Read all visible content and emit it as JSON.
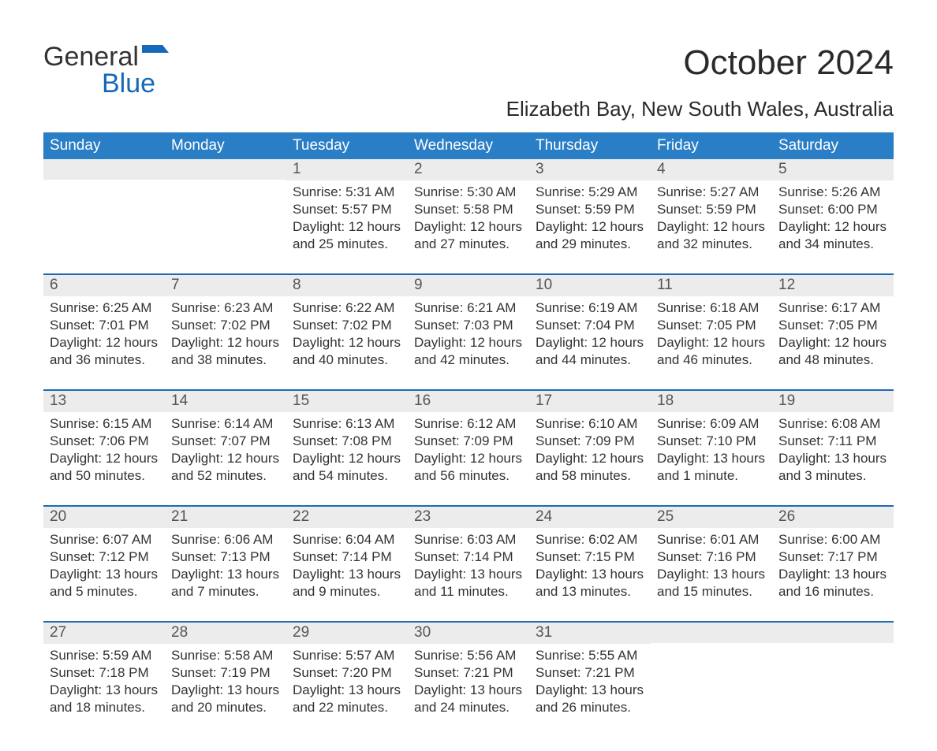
{
  "brand": {
    "part1": "General",
    "part2": "Blue"
  },
  "title": {
    "month_year": "October 2024",
    "location": "Elizabeth Bay, New South Wales, Australia"
  },
  "colors": {
    "header_blue": "#2a7ec6",
    "row_border_blue": "#1f6bb3",
    "daynum_bg": "#ececec",
    "text_dark": "#333333",
    "logo_blue": "#1668b8",
    "background": "#ffffff"
  },
  "weekdays": [
    "Sunday",
    "Monday",
    "Tuesday",
    "Wednesday",
    "Thursday",
    "Friday",
    "Saturday"
  ],
  "weeks": [
    [
      null,
      null,
      {
        "n": "1",
        "sunrise": "Sunrise: 5:31 AM",
        "sunset": "Sunset: 5:57 PM",
        "dl1": "Daylight: 12 hours",
        "dl2": "and 25 minutes."
      },
      {
        "n": "2",
        "sunrise": "Sunrise: 5:30 AM",
        "sunset": "Sunset: 5:58 PM",
        "dl1": "Daylight: 12 hours",
        "dl2": "and 27 minutes."
      },
      {
        "n": "3",
        "sunrise": "Sunrise: 5:29 AM",
        "sunset": "Sunset: 5:59 PM",
        "dl1": "Daylight: 12 hours",
        "dl2": "and 29 minutes."
      },
      {
        "n": "4",
        "sunrise": "Sunrise: 5:27 AM",
        "sunset": "Sunset: 5:59 PM",
        "dl1": "Daylight: 12 hours",
        "dl2": "and 32 minutes."
      },
      {
        "n": "5",
        "sunrise": "Sunrise: 5:26 AM",
        "sunset": "Sunset: 6:00 PM",
        "dl1": "Daylight: 12 hours",
        "dl2": "and 34 minutes."
      }
    ],
    [
      {
        "n": "6",
        "sunrise": "Sunrise: 6:25 AM",
        "sunset": "Sunset: 7:01 PM",
        "dl1": "Daylight: 12 hours",
        "dl2": "and 36 minutes."
      },
      {
        "n": "7",
        "sunrise": "Sunrise: 6:23 AM",
        "sunset": "Sunset: 7:02 PM",
        "dl1": "Daylight: 12 hours",
        "dl2": "and 38 minutes."
      },
      {
        "n": "8",
        "sunrise": "Sunrise: 6:22 AM",
        "sunset": "Sunset: 7:02 PM",
        "dl1": "Daylight: 12 hours",
        "dl2": "and 40 minutes."
      },
      {
        "n": "9",
        "sunrise": "Sunrise: 6:21 AM",
        "sunset": "Sunset: 7:03 PM",
        "dl1": "Daylight: 12 hours",
        "dl2": "and 42 minutes."
      },
      {
        "n": "10",
        "sunrise": "Sunrise: 6:19 AM",
        "sunset": "Sunset: 7:04 PM",
        "dl1": "Daylight: 12 hours",
        "dl2": "and 44 minutes."
      },
      {
        "n": "11",
        "sunrise": "Sunrise: 6:18 AM",
        "sunset": "Sunset: 7:05 PM",
        "dl1": "Daylight: 12 hours",
        "dl2": "and 46 minutes."
      },
      {
        "n": "12",
        "sunrise": "Sunrise: 6:17 AM",
        "sunset": "Sunset: 7:05 PM",
        "dl1": "Daylight: 12 hours",
        "dl2": "and 48 minutes."
      }
    ],
    [
      {
        "n": "13",
        "sunrise": "Sunrise: 6:15 AM",
        "sunset": "Sunset: 7:06 PM",
        "dl1": "Daylight: 12 hours",
        "dl2": "and 50 minutes."
      },
      {
        "n": "14",
        "sunrise": "Sunrise: 6:14 AM",
        "sunset": "Sunset: 7:07 PM",
        "dl1": "Daylight: 12 hours",
        "dl2": "and 52 minutes."
      },
      {
        "n": "15",
        "sunrise": "Sunrise: 6:13 AM",
        "sunset": "Sunset: 7:08 PM",
        "dl1": "Daylight: 12 hours",
        "dl2": "and 54 minutes."
      },
      {
        "n": "16",
        "sunrise": "Sunrise: 6:12 AM",
        "sunset": "Sunset: 7:09 PM",
        "dl1": "Daylight: 12 hours",
        "dl2": "and 56 minutes."
      },
      {
        "n": "17",
        "sunrise": "Sunrise: 6:10 AM",
        "sunset": "Sunset: 7:09 PM",
        "dl1": "Daylight: 12 hours",
        "dl2": "and 58 minutes."
      },
      {
        "n": "18",
        "sunrise": "Sunrise: 6:09 AM",
        "sunset": "Sunset: 7:10 PM",
        "dl1": "Daylight: 13 hours",
        "dl2": "and 1 minute."
      },
      {
        "n": "19",
        "sunrise": "Sunrise: 6:08 AM",
        "sunset": "Sunset: 7:11 PM",
        "dl1": "Daylight: 13 hours",
        "dl2": "and 3 minutes."
      }
    ],
    [
      {
        "n": "20",
        "sunrise": "Sunrise: 6:07 AM",
        "sunset": "Sunset: 7:12 PM",
        "dl1": "Daylight: 13 hours",
        "dl2": "and 5 minutes."
      },
      {
        "n": "21",
        "sunrise": "Sunrise: 6:06 AM",
        "sunset": "Sunset: 7:13 PM",
        "dl1": "Daylight: 13 hours",
        "dl2": "and 7 minutes."
      },
      {
        "n": "22",
        "sunrise": "Sunrise: 6:04 AM",
        "sunset": "Sunset: 7:14 PM",
        "dl1": "Daylight: 13 hours",
        "dl2": "and 9 minutes."
      },
      {
        "n": "23",
        "sunrise": "Sunrise: 6:03 AM",
        "sunset": "Sunset: 7:14 PM",
        "dl1": "Daylight: 13 hours",
        "dl2": "and 11 minutes."
      },
      {
        "n": "24",
        "sunrise": "Sunrise: 6:02 AM",
        "sunset": "Sunset: 7:15 PM",
        "dl1": "Daylight: 13 hours",
        "dl2": "and 13 minutes."
      },
      {
        "n": "25",
        "sunrise": "Sunrise: 6:01 AM",
        "sunset": "Sunset: 7:16 PM",
        "dl1": "Daylight: 13 hours",
        "dl2": "and 15 minutes."
      },
      {
        "n": "26",
        "sunrise": "Sunrise: 6:00 AM",
        "sunset": "Sunset: 7:17 PM",
        "dl1": "Daylight: 13 hours",
        "dl2": "and 16 minutes."
      }
    ],
    [
      {
        "n": "27",
        "sunrise": "Sunrise: 5:59 AM",
        "sunset": "Sunset: 7:18 PM",
        "dl1": "Daylight: 13 hours",
        "dl2": "and 18 minutes."
      },
      {
        "n": "28",
        "sunrise": "Sunrise: 5:58 AM",
        "sunset": "Sunset: 7:19 PM",
        "dl1": "Daylight: 13 hours",
        "dl2": "and 20 minutes."
      },
      {
        "n": "29",
        "sunrise": "Sunrise: 5:57 AM",
        "sunset": "Sunset: 7:20 PM",
        "dl1": "Daylight: 13 hours",
        "dl2": "and 22 minutes."
      },
      {
        "n": "30",
        "sunrise": "Sunrise: 5:56 AM",
        "sunset": "Sunset: 7:21 PM",
        "dl1": "Daylight: 13 hours",
        "dl2": "and 24 minutes."
      },
      {
        "n": "31",
        "sunrise": "Sunrise: 5:55 AM",
        "sunset": "Sunset: 7:21 PM",
        "dl1": "Daylight: 13 hours",
        "dl2": "and 26 minutes."
      },
      null,
      null
    ]
  ]
}
